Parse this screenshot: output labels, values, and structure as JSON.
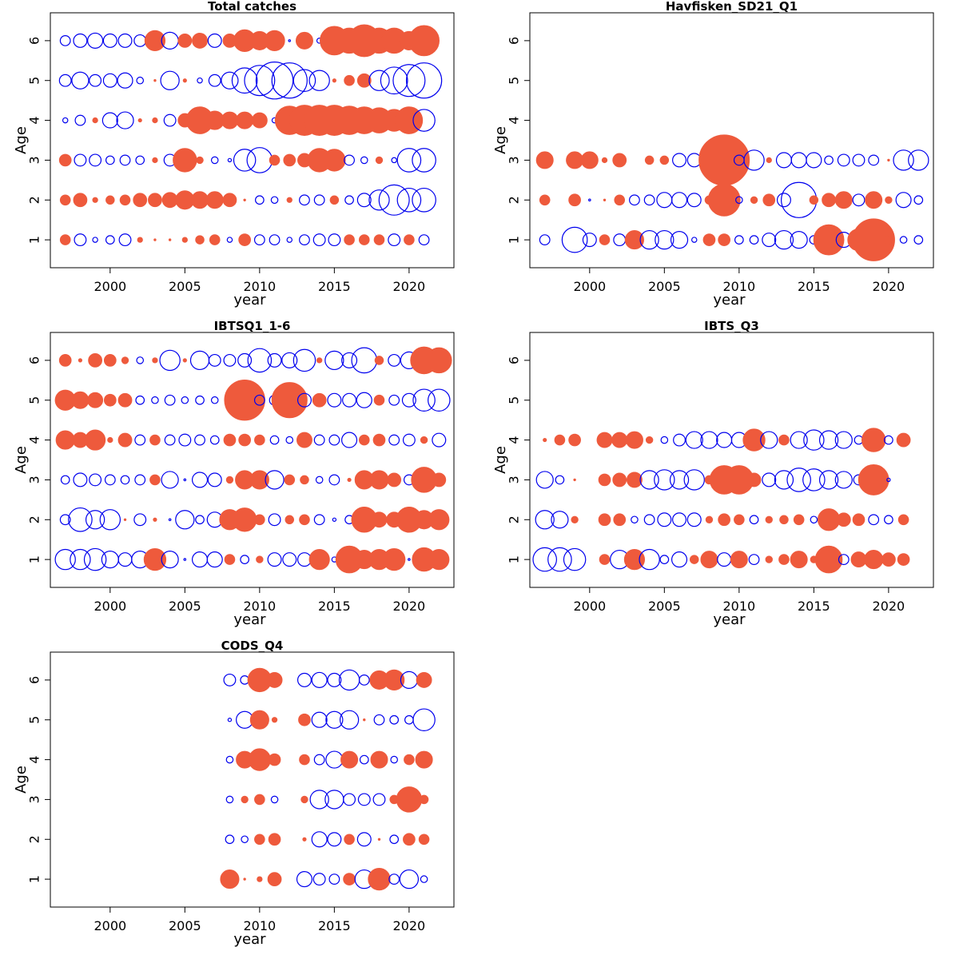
{
  "colors": {
    "positive": "#EE5A3C",
    "negative": "#0000EE",
    "frame": "#000000"
  },
  "chart_data": [
    {
      "type": "scatter",
      "title": "Total catches",
      "xlabel": "year",
      "ylabel": "Age",
      "xlim": [
        1996,
        2023
      ],
      "ylim": [
        0.3,
        6.7
      ],
      "xticks": [
        "2000",
        "2005",
        "2010",
        "2015",
        "2020"
      ],
      "yticks": [
        "1",
        "2",
        "3",
        "4",
        "5",
        "6"
      ],
      "years": [
        1997,
        1998,
        1999,
        2000,
        2001,
        2002,
        2003,
        2004,
        2005,
        2006,
        2007,
        2008,
        2009,
        2010,
        2011,
        2012,
        2013,
        2014,
        2015,
        2016,
        2017,
        2018,
        2019,
        2020,
        2021
      ],
      "residuals": [
        [
          0.6,
          -0.7,
          -0.3,
          -0.5,
          -0.7,
          0.3,
          0.1,
          0.1,
          0.3,
          0.5,
          0.6,
          -0.3,
          0.7,
          -0.6,
          -0.6,
          -0.3,
          -0.6,
          -0.7,
          -0.7,
          0.6,
          0.6,
          0.6,
          -0.7,
          0.6,
          -0.6
        ],
        [
          0.6,
          0.8,
          0.3,
          0.5,
          0.6,
          0.8,
          0.8,
          0.9,
          1.1,
          1.0,
          1.0,
          0.8,
          0.1,
          -0.5,
          -0.4,
          0.3,
          -0.6,
          -0.6,
          0.5,
          -0.5,
          -0.8,
          -1.2,
          -1.8,
          -1.4,
          -1.4
        ],
        [
          0.7,
          -0.7,
          -0.7,
          -0.5,
          -0.6,
          -0.5,
          0.3,
          -0.7,
          1.4,
          0.4,
          -0.4,
          -0.2,
          -1.3,
          -1.5,
          0.6,
          0.7,
          0.8,
          1.4,
          1.3,
          -0.6,
          -0.4,
          0.4,
          -0.3,
          -1.4,
          -1.4
        ],
        [
          -0.3,
          -0.6,
          0.3,
          -0.9,
          -1.0,
          0.2,
          0.3,
          -0.7,
          0.8,
          1.6,
          1.1,
          1.0,
          1.0,
          0.9,
          -0.3,
          1.7,
          1.8,
          1.8,
          1.8,
          1.7,
          1.6,
          1.5,
          1.3,
          1.6,
          -1.3
        ],
        [
          -0.7,
          -1.0,
          -0.7,
          -0.8,
          -0.9,
          -0.4,
          0.1,
          -1.1,
          0.2,
          -0.3,
          -0.7,
          -1.0,
          -1.5,
          -1.8,
          -2.2,
          -2.1,
          -1.3,
          -1.2,
          0.2,
          0.6,
          0.8,
          -1.2,
          -1.6,
          -1.9,
          -2.1
        ],
        [
          -0.6,
          -0.8,
          -0.9,
          -0.8,
          -0.8,
          -0.7,
          1.2,
          -1.0,
          0.8,
          0.9,
          -0.8,
          0.8,
          1.3,
          1.1,
          1.2,
          -0.1,
          1.0,
          -0.3,
          1.7,
          1.5,
          1.9,
          1.5,
          1.5,
          1.1,
          1.8
        ]
      ]
    },
    {
      "type": "scatter",
      "title": "Havfisken_SD21_Q1",
      "xlabel": "year",
      "ylabel": "Age",
      "xlim": [
        1996,
        2023
      ],
      "ylim": [
        0.3,
        6.7
      ],
      "xticks": [
        "2000",
        "2005",
        "2010",
        "2015",
        "2020"
      ],
      "yticks": [
        "1",
        "2",
        "3",
        "4",
        "5",
        "6"
      ],
      "years": [
        1997,
        1998,
        1999,
        2000,
        2001,
        2002,
        2003,
        2004,
        2005,
        2006,
        2007,
        2008,
        2009,
        2010,
        2011,
        2012,
        2013,
        2014,
        2015,
        2016,
        2017,
        2018,
        2019,
        2020,
        2021,
        2022
      ],
      "residuals": [
        [
          -0.6,
          null,
          -1.5,
          -0.8,
          0.6,
          -0.7,
          1.1,
          -1.1,
          -1.1,
          -1.0,
          -0.3,
          0.7,
          0.7,
          -0.5,
          -0.5,
          -0.8,
          -1.1,
          -1.0,
          -0.5,
          1.8,
          -0.9,
          1.3,
          2.5,
          0.5,
          -0.4,
          -0.5
        ],
        [
          0.6,
          null,
          0.7,
          -0.1,
          0.1,
          0.6,
          -0.6,
          -0.6,
          -0.9,
          -0.9,
          -0.8,
          0.5,
          1.9,
          -0.4,
          0.4,
          0.7,
          -0.8,
          -2.1,
          0.5,
          0.8,
          1.0,
          -0.7,
          1.0,
          0.4,
          -0.9,
          -0.5
        ],
        [
          1.0,
          null,
          1.0,
          1.0,
          0.3,
          0.8,
          null,
          0.5,
          0.5,
          -0.8,
          -0.8,
          0.4,
          3.0,
          -0.6,
          -1.2,
          0.3,
          -0.9,
          -0.9,
          -0.9,
          -0.5,
          -0.7,
          -0.7,
          -0.6,
          0.1,
          -1.2,
          -1.2
        ]
      ]
    },
    {
      "type": "scatter",
      "title": "IBTSQ1_1-6",
      "xlabel": "year",
      "ylabel": "Age",
      "xlim": [
        1996,
        2023
      ],
      "ylim": [
        0.3,
        6.7
      ],
      "xticks": [
        "2000",
        "2005",
        "2010",
        "2015",
        "2020"
      ],
      "yticks": [
        "1",
        "2",
        "3",
        "4",
        "5",
        "6"
      ],
      "years": [
        1997,
        1998,
        1999,
        2000,
        2001,
        2002,
        2003,
        2004,
        2005,
        2006,
        2007,
        2008,
        2009,
        2010,
        2011,
        2012,
        2013,
        2014,
        2015,
        2016,
        2017,
        2018,
        2019,
        2020,
        2021,
        2022
      ],
      "residuals": [
        [
          -1.2,
          -1.2,
          -1.3,
          -1.0,
          -0.8,
          -1.0,
          1.3,
          -1.0,
          -0.1,
          -0.9,
          -0.9,
          0.6,
          -0.5,
          0.4,
          -0.8,
          -0.8,
          -0.8,
          1.2,
          -0.3,
          1.6,
          1.1,
          1.2,
          1.3,
          -0.1,
          1.4,
          1.2
        ],
        [
          -0.6,
          -1.4,
          -1.1,
          -1.2,
          0.1,
          -0.7,
          0.2,
          -0.1,
          -1.1,
          -0.5,
          -0.9,
          1.2,
          1.4,
          0.6,
          -0.7,
          0.5,
          0.6,
          -0.6,
          -0.2,
          -0.5,
          1.5,
          0.9,
          0.9,
          1.5,
          1.1,
          1.2
        ],
        [
          -0.5,
          -0.8,
          -0.7,
          -0.6,
          -0.5,
          -0.6,
          0.6,
          -1.0,
          -0.1,
          -0.9,
          -0.8,
          0.4,
          1.1,
          1.1,
          -1.1,
          0.6,
          0.5,
          -0.4,
          -0.6,
          0.2,
          1.1,
          1.1,
          0.8,
          -0.6,
          1.5,
          0.8
        ],
        [
          1.1,
          0.9,
          1.2,
          0.3,
          0.8,
          -0.6,
          0.6,
          -0.6,
          -0.7,
          -0.6,
          -0.5,
          0.7,
          0.7,
          0.6,
          -0.5,
          -0.4,
          0.9,
          -0.6,
          -0.6,
          -0.9,
          0.6,
          0.7,
          -0.6,
          -0.7,
          0.4,
          -0.8
        ],
        [
          1.2,
          1.0,
          0.9,
          0.7,
          0.8,
          -0.5,
          -0.4,
          -0.6,
          -0.4,
          -0.5,
          -0.4,
          0.5,
          2.4,
          -0.6,
          -0.6,
          2.1,
          -0.8,
          0.8,
          -0.8,
          -0.8,
          -0.9,
          0.6,
          -0.6,
          -0.8,
          -1.3,
          -1.3
        ],
        [
          0.7,
          0.2,
          0.8,
          0.7,
          0.4,
          -0.4,
          0.3,
          -1.2,
          0.2,
          -1.1,
          -0.7,
          -0.7,
          -0.8,
          -1.4,
          -0.8,
          -0.9,
          -1.3,
          0.3,
          -1.1,
          -0.9,
          -1.5,
          0.5,
          -0.7,
          -1.0,
          1.6,
          1.5
        ]
      ]
    },
    {
      "type": "scatter",
      "title": "IBTS_Q3",
      "xlabel": "year",
      "ylabel": "Age",
      "xlim": [
        1996,
        2023
      ],
      "ylim": [
        0.3,
        6.7
      ],
      "xticks": [
        "2000",
        "2005",
        "2010",
        "2015",
        "2020"
      ],
      "yticks": [
        "1",
        "2",
        "3",
        "4",
        "5",
        "6"
      ],
      "years": [
        1997,
        1998,
        1999,
        2000,
        2001,
        2002,
        2003,
        2004,
        2005,
        2006,
        2007,
        2008,
        2009,
        2010,
        2011,
        2012,
        2013,
        2014,
        2015,
        2016,
        2017,
        2018,
        2019,
        2020,
        2021
      ],
      "residuals": [
        [
          -1.4,
          -1.4,
          -1.3,
          null,
          0.6,
          -1.1,
          1.2,
          -1.2,
          -0.5,
          -0.9,
          0.5,
          1.0,
          -0.8,
          1.0,
          -0.6,
          0.4,
          0.6,
          1.0,
          0.4,
          1.6,
          -0.6,
          0.9,
          1.1,
          0.8,
          0.7
        ],
        [
          -1.1,
          -1.0,
          0.4,
          null,
          0.7,
          0.7,
          -0.4,
          -0.6,
          -0.8,
          -0.8,
          -0.8,
          0.4,
          0.7,
          0.6,
          -0.5,
          0.4,
          0.5,
          0.6,
          -0.4,
          1.3,
          0.8,
          0.7,
          -0.6,
          -0.5,
          0.6
        ],
        [
          -1.0,
          -0.5,
          0.1,
          null,
          0.7,
          0.8,
          0.9,
          -1.1,
          -1.2,
          -1.1,
          -1.2,
          0.5,
          1.7,
          1.7,
          0.8,
          -0.8,
          -1.1,
          -1.4,
          -1.3,
          -1.1,
          -1.0,
          -0.6,
          1.8,
          -0.2,
          null
        ],
        [
          0.2,
          0.6,
          0.7,
          null,
          0.9,
          0.9,
          1.0,
          0.4,
          -0.4,
          -0.7,
          -1.0,
          -1.0,
          -0.9,
          -0.9,
          1.3,
          -1.0,
          0.6,
          -1.0,
          -1.2,
          -1.1,
          -1.0,
          -0.5,
          1.4,
          -0.5,
          0.8
        ]
      ]
    },
    {
      "type": "scatter",
      "title": "CODS_Q4",
      "xlabel": "year",
      "ylabel": "Age",
      "xlim": [
        1996,
        2023
      ],
      "ylim": [
        0.3,
        6.7
      ],
      "xticks": [
        "2000",
        "2005",
        "2010",
        "2015",
        "2020"
      ],
      "yticks": [
        "1",
        "2",
        "3",
        "4",
        "5",
        "6"
      ],
      "years": [
        2008,
        2009,
        2010,
        2011,
        2012,
        2013,
        2014,
        2015,
        2016,
        2017,
        2018,
        2019,
        2020,
        2021
      ],
      "residuals": [
        [
          1.1,
          0.1,
          0.3,
          0.8,
          null,
          -0.9,
          -0.7,
          -0.6,
          0.7,
          -1.1,
          1.3,
          -0.6,
          -1.1,
          -0.4
        ],
        [
          -0.5,
          -0.4,
          0.6,
          0.7,
          null,
          0.2,
          -0.9,
          -0.8,
          0.6,
          -0.8,
          0.1,
          -0.5,
          0.7,
          0.6
        ],
        [
          -0.4,
          0.4,
          0.6,
          -0.4,
          null,
          0.4,
          -1.1,
          -1.1,
          -0.7,
          -0.7,
          -0.7,
          0.5,
          1.5,
          0.5
        ],
        [
          -0.4,
          1.0,
          1.3,
          0.7,
          null,
          0.6,
          -0.6,
          -1.0,
          1.0,
          -0.5,
          1.0,
          -0.4,
          0.6,
          1.0
        ],
        [
          -0.2,
          -1.0,
          1.1,
          0.3,
          null,
          0.7,
          -0.9,
          -1.0,
          -1.1,
          0.1,
          -0.6,
          -0.5,
          -0.5,
          -1.3
        ],
        [
          -0.7,
          -0.5,
          1.4,
          0.9,
          null,
          -0.8,
          -0.9,
          -0.8,
          -1.2,
          -0.6,
          1.1,
          1.2,
          -1.0,
          0.9
        ]
      ]
    }
  ]
}
